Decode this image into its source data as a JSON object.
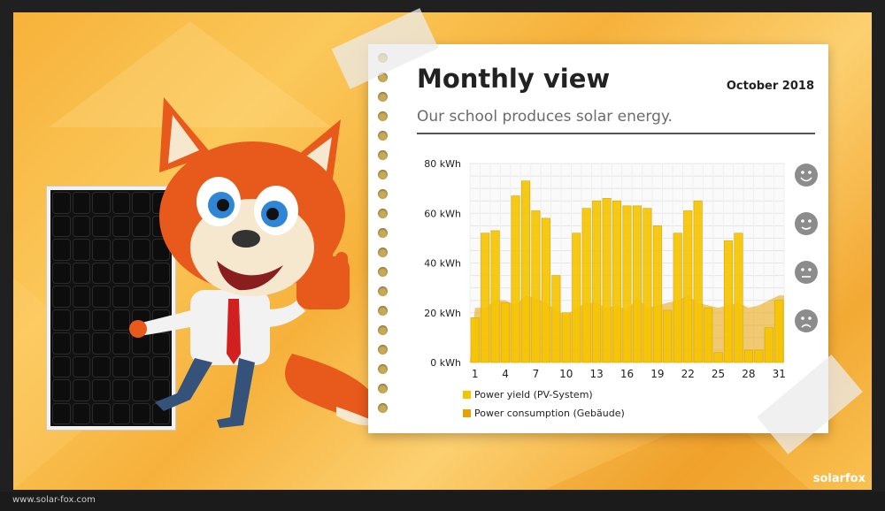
{
  "card": {
    "title": "Monthly view",
    "date": "October 2018",
    "subtitle": "Our school produces solar energy."
  },
  "footer": {
    "url": "www.solar-fox.com",
    "brand": "solarfox"
  },
  "chart_data": {
    "type": "bar",
    "x": [
      1,
      2,
      3,
      4,
      5,
      6,
      7,
      8,
      9,
      10,
      11,
      12,
      13,
      14,
      15,
      16,
      17,
      18,
      19,
      20,
      21,
      22,
      23,
      24,
      25,
      26,
      27,
      28,
      29,
      30,
      31
    ],
    "xticks": [
      "1",
      "4",
      "7",
      "10",
      "13",
      "16",
      "19",
      "22",
      "25",
      "28",
      "31"
    ],
    "yticks": [
      "0 kWh",
      "20 kWh",
      "40 kWh",
      "60 kWh",
      "80 kWh"
    ],
    "ylim": [
      0,
      80
    ],
    "series": [
      {
        "name": "Power yield (PV-System)",
        "color": "#f5c400",
        "values": [
          18,
          52,
          53,
          24,
          67,
          73,
          61,
          58,
          35,
          20,
          52,
          62,
          65,
          66,
          65,
          63,
          63,
          62,
          55,
          21,
          52,
          61,
          65,
          22,
          4,
          49,
          52,
          5,
          5,
          14,
          25
        ]
      },
      {
        "name": "Power consumption (Gebäude)",
        "color": "#e8a100",
        "values": [
          22,
          22,
          25,
          25,
          23,
          27,
          26,
          24,
          21,
          19,
          22,
          24,
          24,
          22,
          23,
          21,
          26,
          22,
          23,
          24,
          25,
          27,
          24,
          23,
          22,
          23,
          24,
          22,
          23,
          25,
          27
        ]
      }
    ],
    "rating_icons": [
      "smiley-very-happy-icon",
      "smiley-happy-icon",
      "smiley-neutral-icon",
      "smiley-sad-icon"
    ],
    "grid": true,
    "legend_position": "bottom-left"
  }
}
